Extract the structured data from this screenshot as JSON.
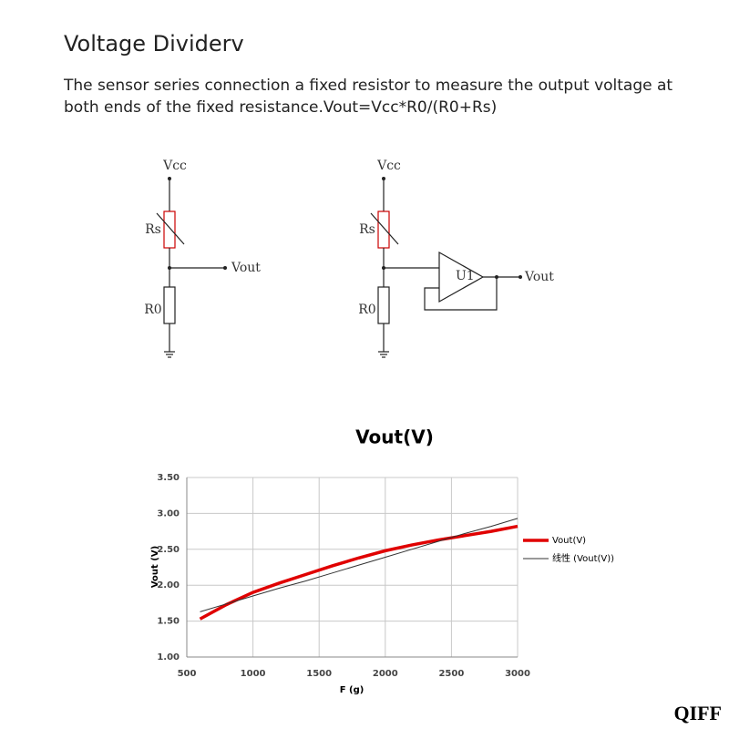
{
  "header": {
    "title": "Voltage Dividerv",
    "description": "The sensor series connection a fixed resistor to measure the output voltage at both ends of the fixed resistance.Vout=Vcc*R0/(R0+Rs)"
  },
  "circuits": [
    {
      "supply": "Vcc",
      "sensor": "Rs",
      "resistor": "R0",
      "output": "Vout"
    },
    {
      "supply": "Vcc",
      "sensor": "Rs",
      "resistor": "R0",
      "amplifier": "U1",
      "output": "Vout"
    }
  ],
  "chart_data": {
    "type": "line",
    "title": "Vout(V)",
    "x_label": "F (g)",
    "y_label": "Vout (V)",
    "x": [
      600,
      800,
      1000,
      1200,
      1400,
      1600,
      1800,
      2000,
      2200,
      2400,
      2600,
      2800,
      3000
    ],
    "series": [
      {
        "name": "Vout(V)",
        "color": "#e00000",
        "values": [
          1.53,
          1.73,
          1.9,
          2.03,
          2.15,
          2.27,
          2.38,
          2.48,
          2.56,
          2.63,
          2.69,
          2.75,
          2.82
        ]
      },
      {
        "name": "线性 (Vout(V))",
        "color": "#333333",
        "values": [
          1.63,
          1.74,
          1.85,
          1.96,
          2.06,
          2.17,
          2.28,
          2.39,
          2.5,
          2.61,
          2.72,
          2.82,
          2.93
        ]
      }
    ],
    "xlim": [
      500,
      3000
    ],
    "xticks": [
      500,
      1000,
      1500,
      2000,
      2500,
      3000
    ],
    "ylim": [
      1,
      3.5
    ],
    "yticks": [
      {
        "value": 1,
        "label": "1.00"
      },
      {
        "value": 1.5,
        "label": "1.50"
      },
      {
        "value": 2,
        "label": "2.00"
      },
      {
        "value": 2.5,
        "label": "2.50"
      },
      {
        "value": 3,
        "label": "3.00"
      },
      {
        "value": 3.5,
        "label": "3.50"
      }
    ],
    "grid": true,
    "legend": "right"
  },
  "watermark": "QIFF"
}
